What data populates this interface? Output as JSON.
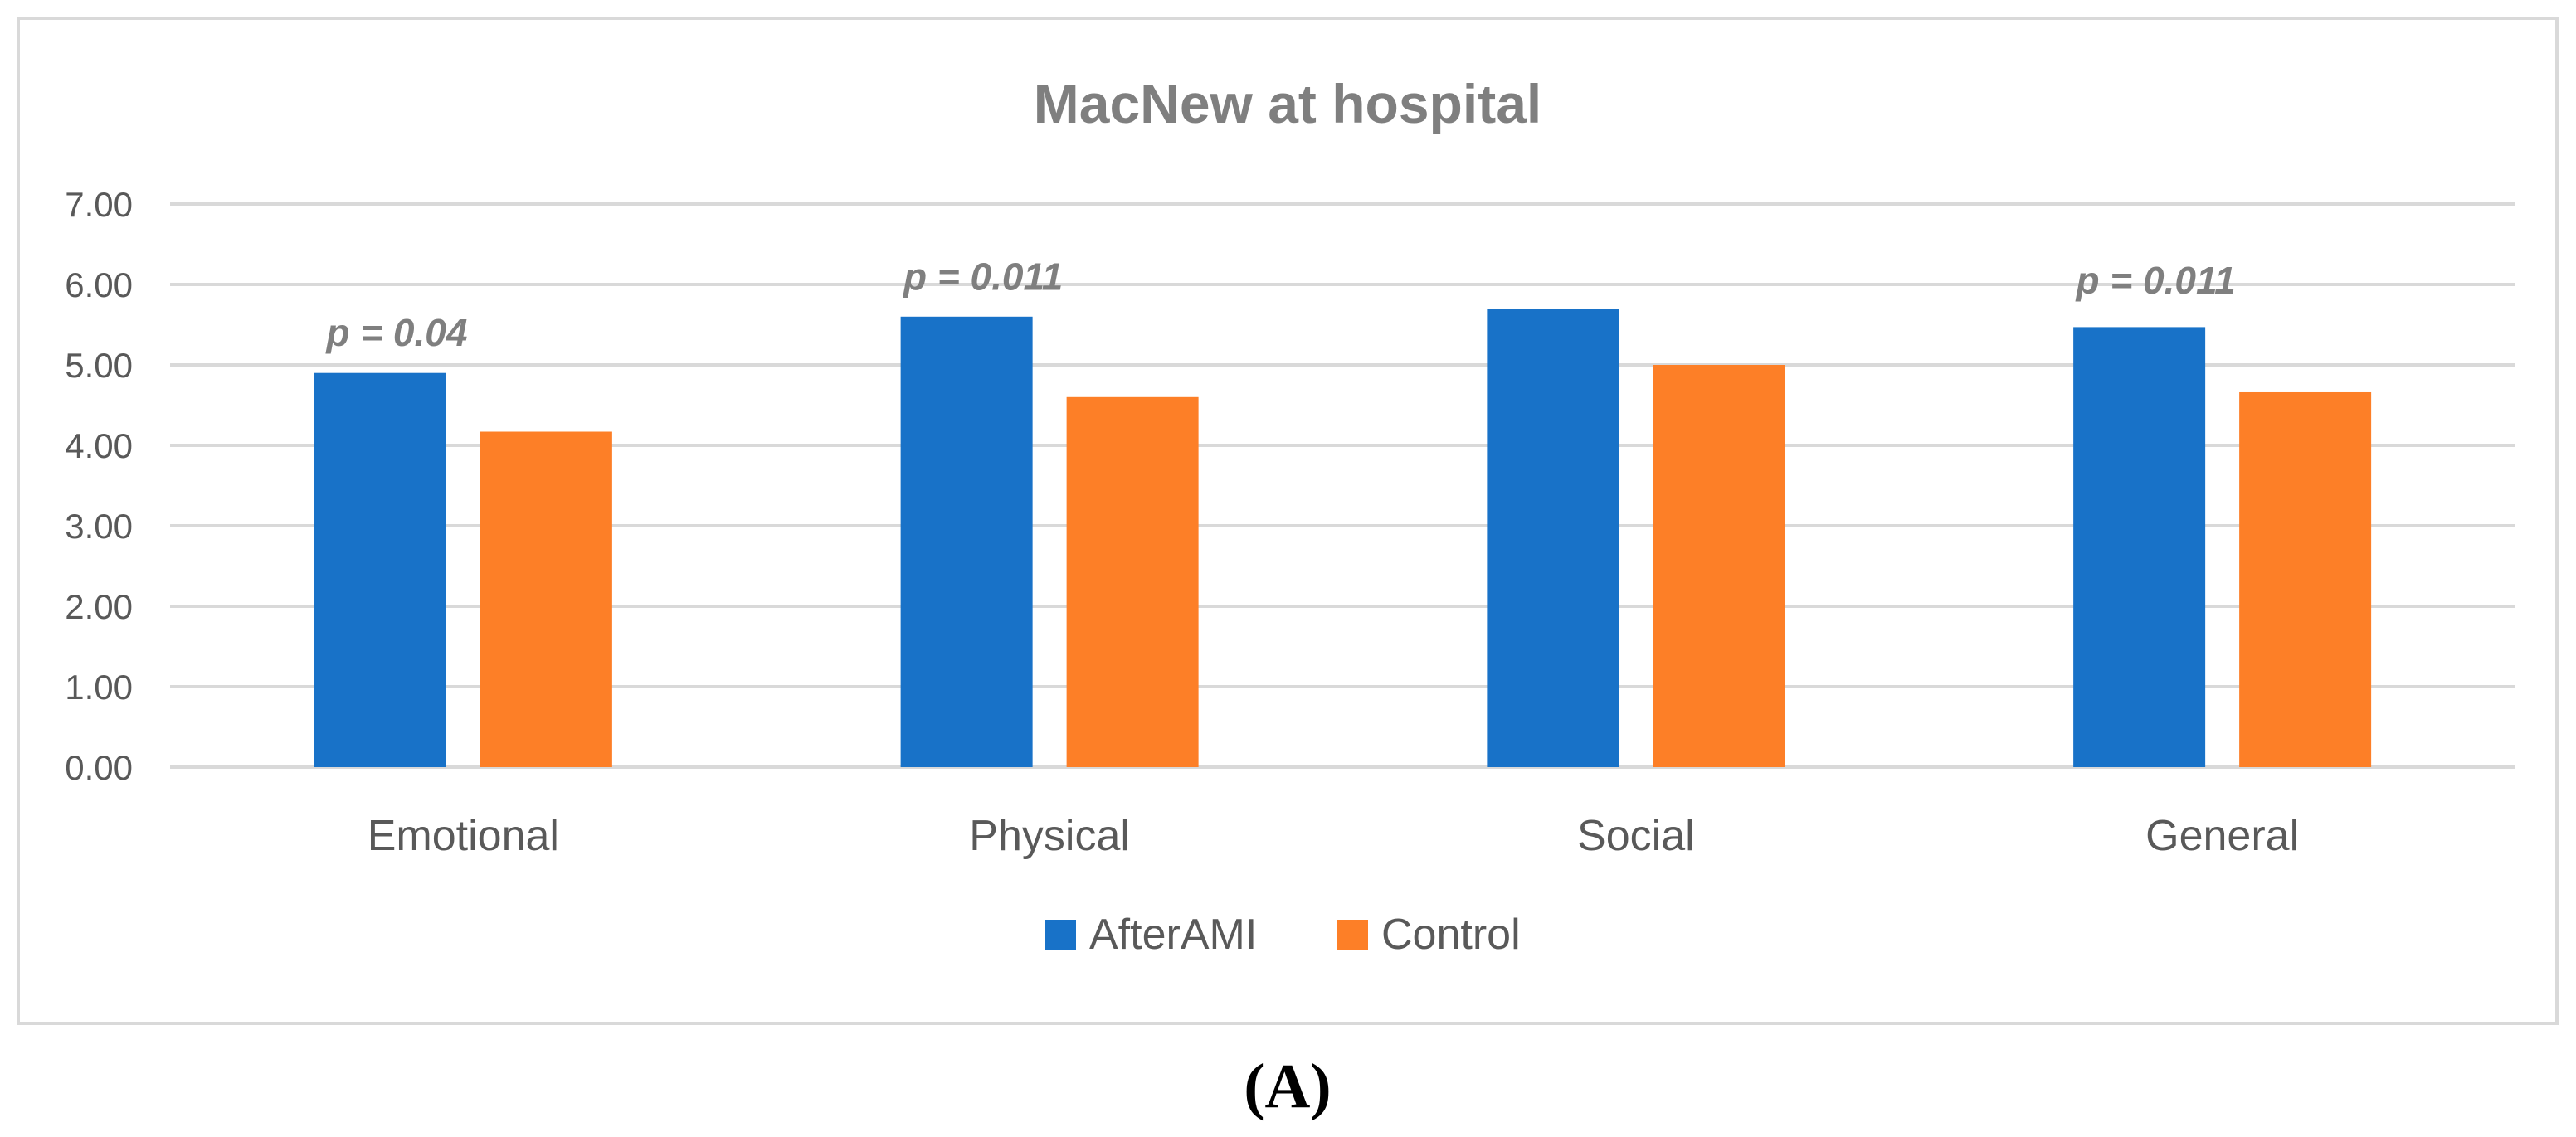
{
  "chart_data": {
    "type": "bar",
    "title": "MacNew at hospital",
    "xlabel": "",
    "ylabel": "",
    "ylim": [
      0,
      7
    ],
    "yticks": [
      "0.00",
      "1.00",
      "2.00",
      "3.00",
      "4.00",
      "5.00",
      "6.00",
      "7.00"
    ],
    "ytick_values": [
      0,
      1,
      2,
      3,
      4,
      5,
      6,
      7
    ],
    "grid": true,
    "legend_position": "bottom",
    "categories": [
      "Emotional",
      "Physical",
      "Social",
      "General"
    ],
    "series": [
      {
        "name": "AfterAMI",
        "color": "#1872c8",
        "values": [
          4.9,
          5.6,
          5.7,
          5.47
        ]
      },
      {
        "name": "Control",
        "color": "#fd7f27",
        "values": [
          4.17,
          4.6,
          5.0,
          4.66
        ]
      }
    ],
    "annotations": [
      {
        "category": "Emotional",
        "text": "p = 0.04",
        "value": 5.4
      },
      {
        "category": "Physical",
        "text": "p = 0.011",
        "value": 6.1
      },
      {
        "category": "General",
        "text": "p = 0.011",
        "value": 6.05
      }
    ]
  },
  "panel_label": "(A)"
}
